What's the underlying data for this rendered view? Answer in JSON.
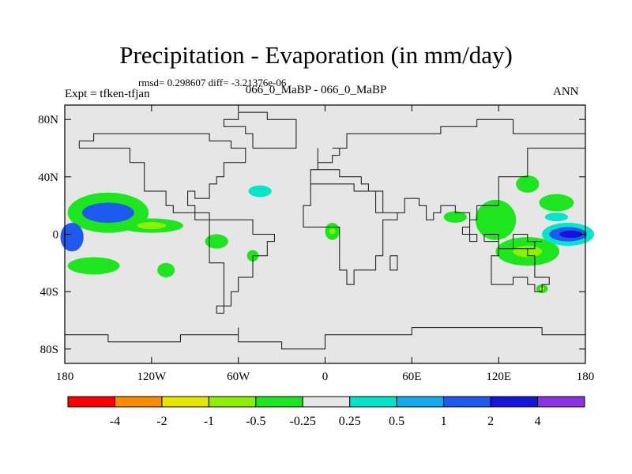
{
  "header": {
    "title": "Precipitation - Evaporation (in mm/day)",
    "stats": "rmsd= 0.298607 diff= -3.21376e-06",
    "left_string": "Expt = tfken-tfjan",
    "center_string": "066_0_MaBP - 066_0_MaBP",
    "right_string": "ANN"
  },
  "chart_data": {
    "type": "heatmap",
    "title": "Precipitation - Evaporation (in mm/day)",
    "subtitle": "066_0_MaBP - 066_0_MaBP",
    "xlabel": "",
    "ylabel": "",
    "xlim": [
      -180,
      180
    ],
    "ylim": [
      -90,
      90
    ],
    "x_ticks": [
      {
        "value": -180,
        "label": "180"
      },
      {
        "value": -120,
        "label": "120W"
      },
      {
        "value": -60,
        "label": "60W"
      },
      {
        "value": 0,
        "label": "0"
      },
      {
        "value": 60,
        "label": "60E"
      },
      {
        "value": 120,
        "label": "120E"
      },
      {
        "value": 180,
        "label": "180"
      }
    ],
    "y_ticks": [
      {
        "value": 80,
        "label": "80N"
      },
      {
        "value": 40,
        "label": "40N"
      },
      {
        "value": 0,
        "label": "0"
      },
      {
        "value": -40,
        "label": "40S"
      },
      {
        "value": -80,
        "label": "80S"
      }
    ],
    "grid": false,
    "colorbar": {
      "placement": "bottom",
      "colors": [
        "#ff0000",
        "#ff8c00",
        "#e6e600",
        "#8cf000",
        "#1ee61e",
        "#e6e6e6",
        "#00e6c8",
        "#14aaf0",
        "#1e5af0",
        "#1414dc",
        "#8c32e6"
      ],
      "boundaries": [
        "-4",
        "-2",
        "-1",
        "-0.5",
        "-0.25",
        "0.25",
        "0.5",
        "1",
        "2",
        "4"
      ]
    },
    "background_color": "#e6e6e6",
    "anomaly_regions": [
      {
        "lon": -150,
        "lat": 15,
        "rlon": 28,
        "rlat": 14,
        "level": 4
      },
      {
        "lon": -150,
        "lat": 15,
        "rlon": 18,
        "rlat": 7,
        "level": 8
      },
      {
        "lon": -175,
        "lat": -2,
        "rlon": 8,
        "rlat": 10,
        "level": 8
      },
      {
        "lon": -120,
        "lat": 6,
        "rlon": 22,
        "rlat": 5,
        "level": 4
      },
      {
        "lon": -120,
        "lat": 6,
        "rlon": 10,
        "rlat": 2.5,
        "level": 3
      },
      {
        "lon": -160,
        "lat": -22,
        "rlon": 18,
        "rlat": 6,
        "level": 4
      },
      {
        "lon": -110,
        "lat": -25,
        "rlon": 6,
        "rlat": 5,
        "level": 4
      },
      {
        "lon": -75,
        "lat": -5,
        "rlon": 8,
        "rlat": 5,
        "level": 4
      },
      {
        "lon": -50,
        "lat": -15,
        "rlon": 4,
        "rlat": 4,
        "level": 4
      },
      {
        "lon": -45,
        "lat": 30,
        "rlon": 8,
        "rlat": 4,
        "level": 6
      },
      {
        "lon": 5,
        "lat": 2,
        "rlon": 5,
        "rlat": 6,
        "level": 4
      },
      {
        "lon": 5,
        "lat": 2,
        "rlon": 2,
        "rlat": 2,
        "level": 3
      },
      {
        "lon": 90,
        "lat": 12,
        "rlon": 8,
        "rlat": 4,
        "level": 4
      },
      {
        "lon": 118,
        "lat": 10,
        "rlon": 14,
        "rlat": 14,
        "level": 4
      },
      {
        "lon": 140,
        "lat": -12,
        "rlon": 22,
        "rlat": 10,
        "level": 4
      },
      {
        "lon": 140,
        "lat": -12,
        "rlon": 10,
        "rlat": 4,
        "level": 3
      },
      {
        "lon": 140,
        "lat": 35,
        "rlon": 8,
        "rlat": 6,
        "level": 4
      },
      {
        "lon": 160,
        "lat": 22,
        "rlon": 12,
        "rlat": 6,
        "level": 4
      },
      {
        "lon": 168,
        "lat": 0,
        "rlon": 18,
        "rlat": 8,
        "level": 6
      },
      {
        "lon": 168,
        "lat": 0,
        "rlon": 13,
        "rlat": 5,
        "level": 8
      },
      {
        "lon": 170,
        "lat": 0,
        "rlon": 8,
        "rlat": 2.5,
        "level": 9
      },
      {
        "lon": 160,
        "lat": 12,
        "rlon": 8,
        "rlat": 3,
        "level": 6
      },
      {
        "lon": 150,
        "lat": -38,
        "rlon": 4,
        "rlat": 3,
        "level": 4
      },
      {
        "lon": 150,
        "lat": -38,
        "rlon": 1.5,
        "rlat": 1.2,
        "level": 2
      }
    ]
  }
}
